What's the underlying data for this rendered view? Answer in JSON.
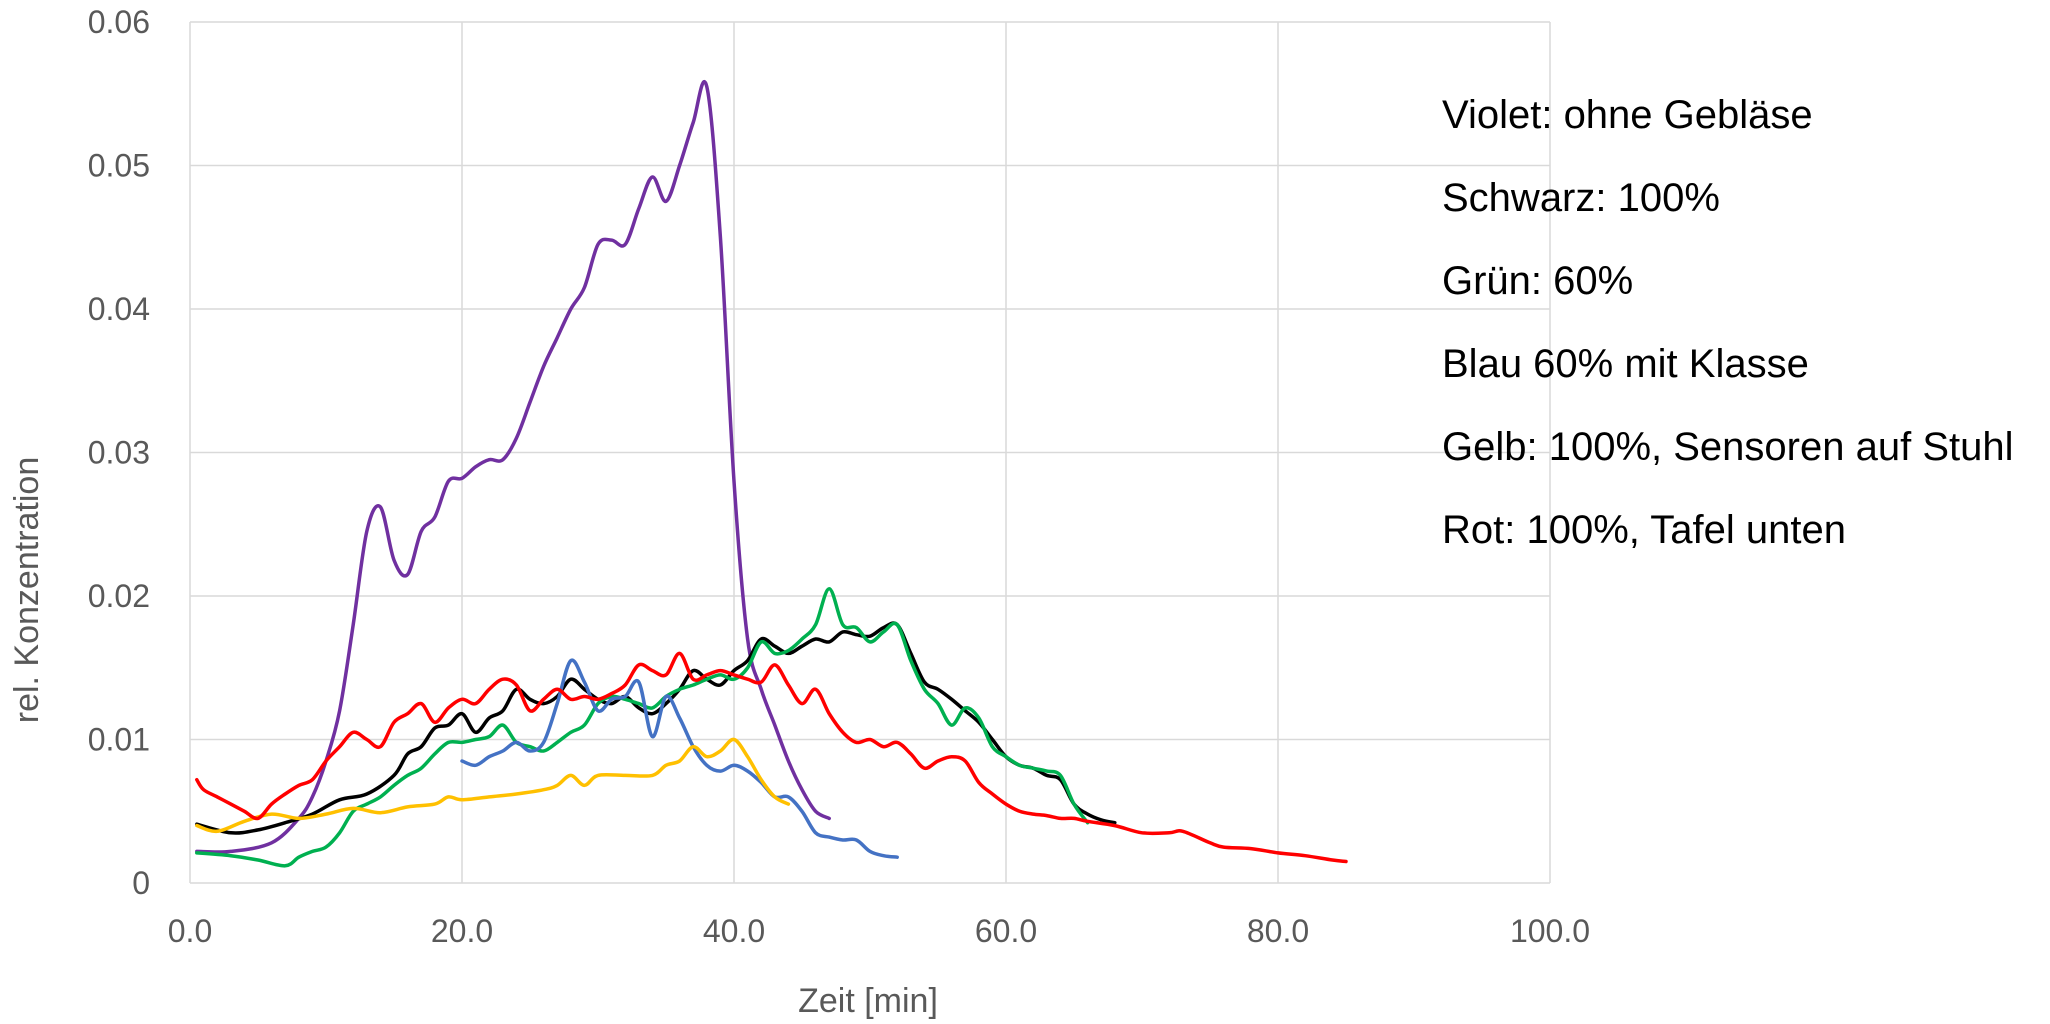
{
  "chart_data": {
    "type": "line",
    "xlabel": "Zeit [min]",
    "ylabel": "rel. Konzentration",
    "xlim": [
      0,
      100
    ],
    "ylim": [
      0,
      0.06
    ],
    "x_ticks": [
      "0.0",
      "20.0",
      "40.0",
      "60.0",
      "80.0",
      "100.0"
    ],
    "y_ticks": [
      "0",
      "0.01",
      "0.02",
      "0.03",
      "0.04",
      "0.05",
      "0.06"
    ],
    "grid": true,
    "annotations": [
      "Violet: ohne Gebläse",
      "Schwarz: 100%",
      "Grün: 60%",
      "Blau 60% mit Klasse",
      "Gelb: 100%, Sensoren auf Stuhl",
      "Rot: 100%, Tafel unten"
    ],
    "series": [
      {
        "color": "#7030a0",
        "points": [
          [
            0.5,
            0.0022
          ],
          [
            3,
            0.0022
          ],
          [
            6,
            0.0028
          ],
          [
            8,
            0.0045
          ],
          [
            9,
            0.006
          ],
          [
            10,
            0.0085
          ],
          [
            11,
            0.012
          ],
          [
            12,
            0.018
          ],
          [
            13,
            0.0245
          ],
          [
            14,
            0.0262
          ],
          [
            15,
            0.0225
          ],
          [
            16,
            0.0215
          ],
          [
            17,
            0.0245
          ],
          [
            18,
            0.0255
          ],
          [
            19,
            0.028
          ],
          [
            20,
            0.0282
          ],
          [
            21,
            0.029
          ],
          [
            22,
            0.0295
          ],
          [
            23,
            0.0295
          ],
          [
            24,
            0.031
          ],
          [
            25,
            0.0335
          ],
          [
            26,
            0.036
          ],
          [
            27,
            0.038
          ],
          [
            28,
            0.04
          ],
          [
            29,
            0.0415
          ],
          [
            30,
            0.0445
          ],
          [
            31,
            0.0448
          ],
          [
            32,
            0.0445
          ],
          [
            33,
            0.047
          ],
          [
            34,
            0.0492
          ],
          [
            35,
            0.0475
          ],
          [
            36,
            0.05
          ],
          [
            37,
            0.053
          ],
          [
            38,
            0.0555
          ],
          [
            39,
            0.045
          ],
          [
            40,
            0.028
          ],
          [
            41,
            0.017
          ],
          [
            42,
            0.0135
          ],
          [
            43,
            0.011
          ],
          [
            44,
            0.0085
          ],
          [
            45,
            0.0065
          ],
          [
            46,
            0.005
          ],
          [
            47,
            0.0045
          ]
        ]
      },
      {
        "color": "#000000",
        "points": [
          [
            0.5,
            0.0041
          ],
          [
            3,
            0.0035
          ],
          [
            5,
            0.0037
          ],
          [
            7,
            0.0042
          ],
          [
            9,
            0.0048
          ],
          [
            11,
            0.0058
          ],
          [
            13,
            0.0062
          ],
          [
            15,
            0.0075
          ],
          [
            16,
            0.009
          ],
          [
            17,
            0.0095
          ],
          [
            18,
            0.0108
          ],
          [
            19,
            0.011
          ],
          [
            20,
            0.0118
          ],
          [
            21,
            0.0105
          ],
          [
            22,
            0.0115
          ],
          [
            23,
            0.012
          ],
          [
            24,
            0.0135
          ],
          [
            25,
            0.0128
          ],
          [
            26,
            0.0125
          ],
          [
            27,
            0.013
          ],
          [
            28,
            0.0142
          ],
          [
            29,
            0.0135
          ],
          [
            30,
            0.0128
          ],
          [
            31,
            0.0125
          ],
          [
            32,
            0.013
          ],
          [
            33,
            0.0122
          ],
          [
            34,
            0.0118
          ],
          [
            35,
            0.0125
          ],
          [
            36,
            0.0135
          ],
          [
            37,
            0.0148
          ],
          [
            38,
            0.0142
          ],
          [
            39,
            0.0138
          ],
          [
            40,
            0.0148
          ],
          [
            41,
            0.0155
          ],
          [
            42,
            0.017
          ],
          [
            43,
            0.0165
          ],
          [
            44,
            0.016
          ],
          [
            45,
            0.0165
          ],
          [
            46,
            0.017
          ],
          [
            47,
            0.0168
          ],
          [
            48,
            0.0175
          ],
          [
            49,
            0.0173
          ],
          [
            50,
            0.0172
          ],
          [
            51,
            0.0178
          ],
          [
            52,
            0.018
          ],
          [
            53,
            0.016
          ],
          [
            54,
            0.014
          ],
          [
            55,
            0.0135
          ],
          [
            56,
            0.0128
          ],
          [
            57,
            0.012
          ],
          [
            58,
            0.0112
          ],
          [
            59,
            0.01
          ],
          [
            60,
            0.0088
          ],
          [
            61,
            0.0082
          ],
          [
            62,
            0.008
          ],
          [
            63,
            0.0075
          ],
          [
            64,
            0.0072
          ],
          [
            65,
            0.0055
          ],
          [
            66,
            0.0048
          ],
          [
            67,
            0.0044
          ],
          [
            68,
            0.0042
          ]
        ]
      },
      {
        "color": "#00b050",
        "points": [
          [
            0.5,
            0.0021
          ],
          [
            3,
            0.0019
          ],
          [
            5,
            0.0016
          ],
          [
            7,
            0.0012
          ],
          [
            8,
            0.0018
          ],
          [
            9,
            0.0022
          ],
          [
            10,
            0.0025
          ],
          [
            11,
            0.0035
          ],
          [
            12,
            0.005
          ],
          [
            13,
            0.0055
          ],
          [
            14,
            0.006
          ],
          [
            15,
            0.0068
          ],
          [
            16,
            0.0075
          ],
          [
            17,
            0.008
          ],
          [
            18,
            0.009
          ],
          [
            19,
            0.0098
          ],
          [
            20,
            0.0098
          ],
          [
            21,
            0.01
          ],
          [
            22,
            0.0102
          ],
          [
            23,
            0.011
          ],
          [
            24,
            0.0098
          ],
          [
            25,
            0.0095
          ],
          [
            26,
            0.0092
          ],
          [
            27,
            0.0098
          ],
          [
            28,
            0.0105
          ],
          [
            29,
            0.011
          ],
          [
            30,
            0.0125
          ],
          [
            31,
            0.013
          ],
          [
            32,
            0.0128
          ],
          [
            33,
            0.0125
          ],
          [
            34,
            0.0122
          ],
          [
            35,
            0.013
          ],
          [
            36,
            0.0135
          ],
          [
            37,
            0.0138
          ],
          [
            38,
            0.0142
          ],
          [
            39,
            0.0145
          ],
          [
            40,
            0.0142
          ],
          [
            41,
            0.015
          ],
          [
            42,
            0.0168
          ],
          [
            43,
            0.016
          ],
          [
            44,
            0.0162
          ],
          [
            45,
            0.017
          ],
          [
            46,
            0.018
          ],
          [
            47,
            0.0205
          ],
          [
            48,
            0.018
          ],
          [
            49,
            0.0178
          ],
          [
            50,
            0.0168
          ],
          [
            51,
            0.0175
          ],
          [
            52,
            0.018
          ],
          [
            53,
            0.0155
          ],
          [
            54,
            0.0135
          ],
          [
            55,
            0.0125
          ],
          [
            56,
            0.011
          ],
          [
            57,
            0.0122
          ],
          [
            58,
            0.0115
          ],
          [
            59,
            0.0095
          ],
          [
            60,
            0.0088
          ],
          [
            61,
            0.0082
          ],
          [
            62,
            0.008
          ],
          [
            63,
            0.0078
          ],
          [
            64,
            0.0075
          ],
          [
            65,
            0.0055
          ],
          [
            66,
            0.0042
          ]
        ]
      },
      {
        "color": "#4472c4",
        "points": [
          [
            20,
            0.0085
          ],
          [
            21,
            0.0082
          ],
          [
            22,
            0.0088
          ],
          [
            23,
            0.0092
          ],
          [
            24,
            0.0098
          ],
          [
            25,
            0.0092
          ],
          [
            26,
            0.0098
          ],
          [
            27,
            0.0125
          ],
          [
            28,
            0.0155
          ],
          [
            29,
            0.014
          ],
          [
            30,
            0.012
          ],
          [
            31,
            0.0128
          ],
          [
            32,
            0.013
          ],
          [
            33,
            0.014
          ],
          [
            34,
            0.0102
          ],
          [
            35,
            0.013
          ],
          [
            36,
            0.0115
          ],
          [
            37,
            0.0095
          ],
          [
            38,
            0.0082
          ],
          [
            39,
            0.0078
          ],
          [
            40,
            0.0082
          ],
          [
            41,
            0.0078
          ],
          [
            42,
            0.007
          ],
          [
            43,
            0.006
          ],
          [
            44,
            0.006
          ],
          [
            45,
            0.005
          ],
          [
            46,
            0.0035
          ],
          [
            47,
            0.0032
          ],
          [
            48,
            0.003
          ],
          [
            49,
            0.003
          ],
          [
            50,
            0.0022
          ],
          [
            51,
            0.0019
          ],
          [
            52,
            0.0018
          ]
        ]
      },
      {
        "color": "#ffc000",
        "points": [
          [
            0.5,
            0.004
          ],
          [
            2,
            0.0036
          ],
          [
            4,
            0.0043
          ],
          [
            6,
            0.0048
          ],
          [
            8,
            0.0045
          ],
          [
            10,
            0.0048
          ],
          [
            12,
            0.0052
          ],
          [
            14,
            0.0049
          ],
          [
            16,
            0.0053
          ],
          [
            18,
            0.0055
          ],
          [
            19,
            0.006
          ],
          [
            20,
            0.0058
          ],
          [
            22,
            0.006
          ],
          [
            24,
            0.0062
          ],
          [
            26,
            0.0065
          ],
          [
            27,
            0.0068
          ],
          [
            28,
            0.0075
          ],
          [
            29,
            0.0068
          ],
          [
            30,
            0.0075
          ],
          [
            32,
            0.0075
          ],
          [
            34,
            0.0075
          ],
          [
            35,
            0.0082
          ],
          [
            36,
            0.0085
          ],
          [
            37,
            0.0095
          ],
          [
            38,
            0.0088
          ],
          [
            39,
            0.0092
          ],
          [
            40,
            0.01
          ],
          [
            41,
            0.0088
          ],
          [
            42,
            0.0072
          ],
          [
            43,
            0.006
          ],
          [
            44,
            0.0055
          ]
        ]
      },
      {
        "color": "#ff0000",
        "points": [
          [
            0.5,
            0.0072
          ],
          [
            1,
            0.0065
          ],
          [
            2,
            0.006
          ],
          [
            3,
            0.0055
          ],
          [
            4,
            0.005
          ],
          [
            5,
            0.0045
          ],
          [
            6,
            0.0055
          ],
          [
            7,
            0.0062
          ],
          [
            8,
            0.0068
          ],
          [
            9,
            0.0072
          ],
          [
            10,
            0.0085
          ],
          [
            11,
            0.0095
          ],
          [
            12,
            0.0105
          ],
          [
            13,
            0.01
          ],
          [
            14,
            0.0095
          ],
          [
            15,
            0.0112
          ],
          [
            16,
            0.0118
          ],
          [
            17,
            0.0125
          ],
          [
            18,
            0.0112
          ],
          [
            19,
            0.0122
          ],
          [
            20,
            0.0128
          ],
          [
            21,
            0.0125
          ],
          [
            22,
            0.0135
          ],
          [
            23,
            0.0142
          ],
          [
            24,
            0.0138
          ],
          [
            25,
            0.012
          ],
          [
            26,
            0.0128
          ],
          [
            27,
            0.0135
          ],
          [
            28,
            0.0128
          ],
          [
            29,
            0.013
          ],
          [
            30,
            0.0128
          ],
          [
            31,
            0.0132
          ],
          [
            32,
            0.0138
          ],
          [
            33,
            0.0152
          ],
          [
            34,
            0.0148
          ],
          [
            35,
            0.0145
          ],
          [
            36,
            0.016
          ],
          [
            37,
            0.0142
          ],
          [
            38,
            0.0145
          ],
          [
            39,
            0.0148
          ],
          [
            40,
            0.0145
          ],
          [
            41,
            0.0142
          ],
          [
            42,
            0.014
          ],
          [
            43,
            0.0152
          ],
          [
            44,
            0.0138
          ],
          [
            45,
            0.0125
          ],
          [
            46,
            0.0135
          ],
          [
            47,
            0.0118
          ],
          [
            48,
            0.0105
          ],
          [
            49,
            0.0098
          ],
          [
            50,
            0.01
          ],
          [
            51,
            0.0095
          ],
          [
            52,
            0.0098
          ],
          [
            53,
            0.009
          ],
          [
            54,
            0.008
          ],
          [
            55,
            0.0085
          ],
          [
            56,
            0.0088
          ],
          [
            57,
            0.0085
          ],
          [
            58,
            0.007
          ],
          [
            59,
            0.0062
          ],
          [
            60,
            0.0055
          ],
          [
            61,
            0.005
          ],
          [
            62,
            0.0048
          ],
          [
            63,
            0.0047
          ],
          [
            64,
            0.0045
          ],
          [
            65,
            0.0045
          ],
          [
            66,
            0.0043
          ],
          [
            68,
            0.004
          ],
          [
            70,
            0.0035
          ],
          [
            72,
            0.0035
          ],
          [
            73,
            0.0036
          ],
          [
            75,
            0.0028
          ],
          [
            76,
            0.0025
          ],
          [
            78,
            0.0024
          ],
          [
            80,
            0.0021
          ],
          [
            82,
            0.0019
          ],
          [
            84,
            0.0016
          ],
          [
            85,
            0.0015
          ]
        ]
      }
    ]
  }
}
